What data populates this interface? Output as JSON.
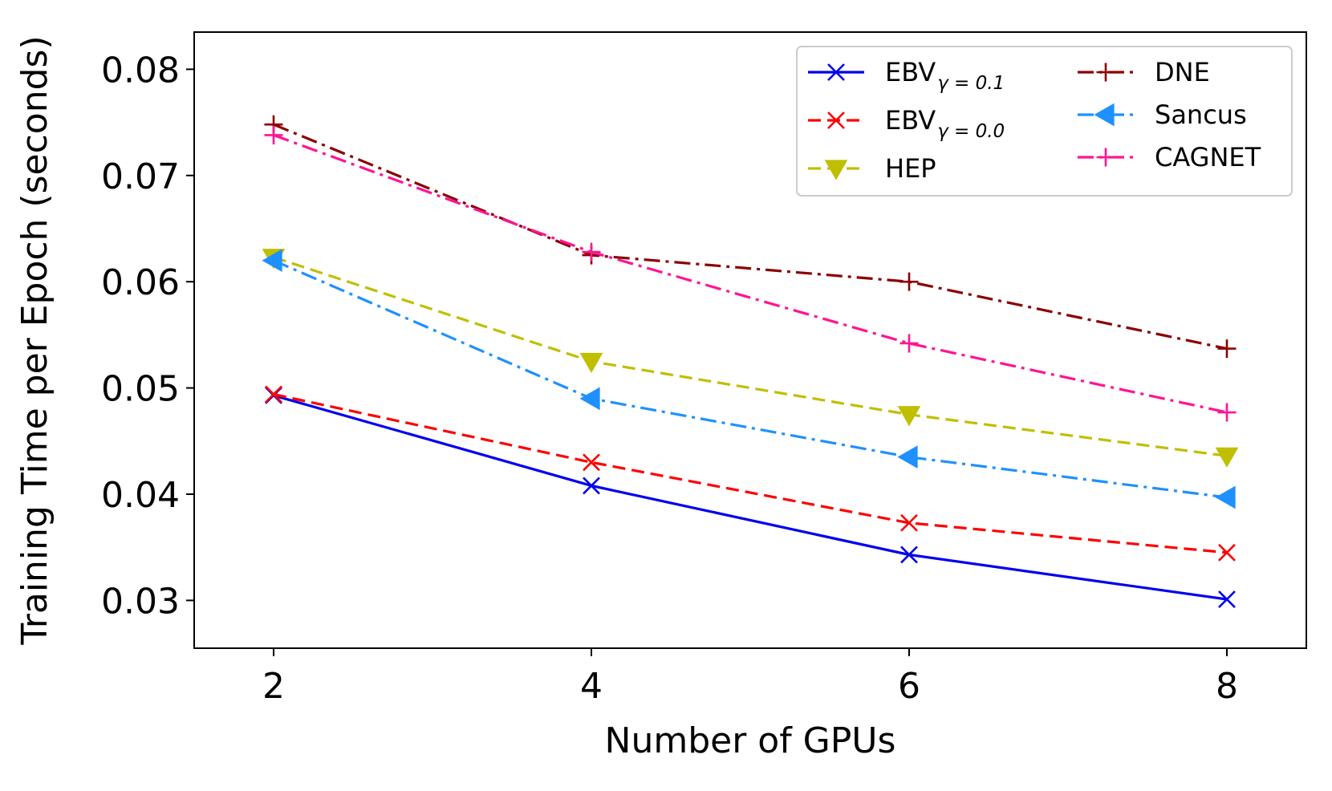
{
  "chart_data": {
    "type": "line",
    "title": "",
    "xlabel": "Number of GPUs",
    "ylabel": "Training Time per Epoch (seconds)",
    "x": [
      2,
      4,
      6,
      8
    ],
    "xticks": [
      "2",
      "4",
      "6",
      "8"
    ],
    "yticks": [
      "0.03",
      "0.04",
      "0.05",
      "0.06",
      "0.07",
      "0.08"
    ],
    "xlim": [
      1.5,
      8.5
    ],
    "ylim": [
      0.0255,
      0.0835
    ],
    "grid": false,
    "legend_position": "top-right",
    "series": [
      {
        "name": "EBV",
        "subscript": "γ = 0.1",
        "values": [
          0.0493,
          0.0408,
          0.0343,
          0.0301
        ],
        "color": "#0000ee",
        "marker": "x",
        "dash": "solid"
      },
      {
        "name": "EBV",
        "subscript": "γ = 0.0",
        "values": [
          0.0494,
          0.043,
          0.0373,
          0.0345
        ],
        "color": "#ff0000",
        "marker": "x",
        "dash": "dashed"
      },
      {
        "name": "HEP",
        "values": [
          0.0623,
          0.0525,
          0.0475,
          0.0436
        ],
        "color": "#bfbf00",
        "marker": "triangle-down",
        "dash": "dashed"
      },
      {
        "name": "DNE",
        "values": [
          0.0748,
          0.0625,
          0.06,
          0.0537
        ],
        "color": "#8b0000",
        "marker": "plus",
        "dash": "dashdot"
      },
      {
        "name": "Sancus",
        "values": [
          0.062,
          0.049,
          0.0435,
          0.0397
        ],
        "color": "#1e90ff",
        "marker": "triangle-left",
        "dash": "dashdot"
      },
      {
        "name": "CAGNET",
        "values": [
          0.0738,
          0.0628,
          0.0542,
          0.0477
        ],
        "color": "#ff1493",
        "marker": "plus",
        "dash": "dashdot"
      }
    ]
  }
}
